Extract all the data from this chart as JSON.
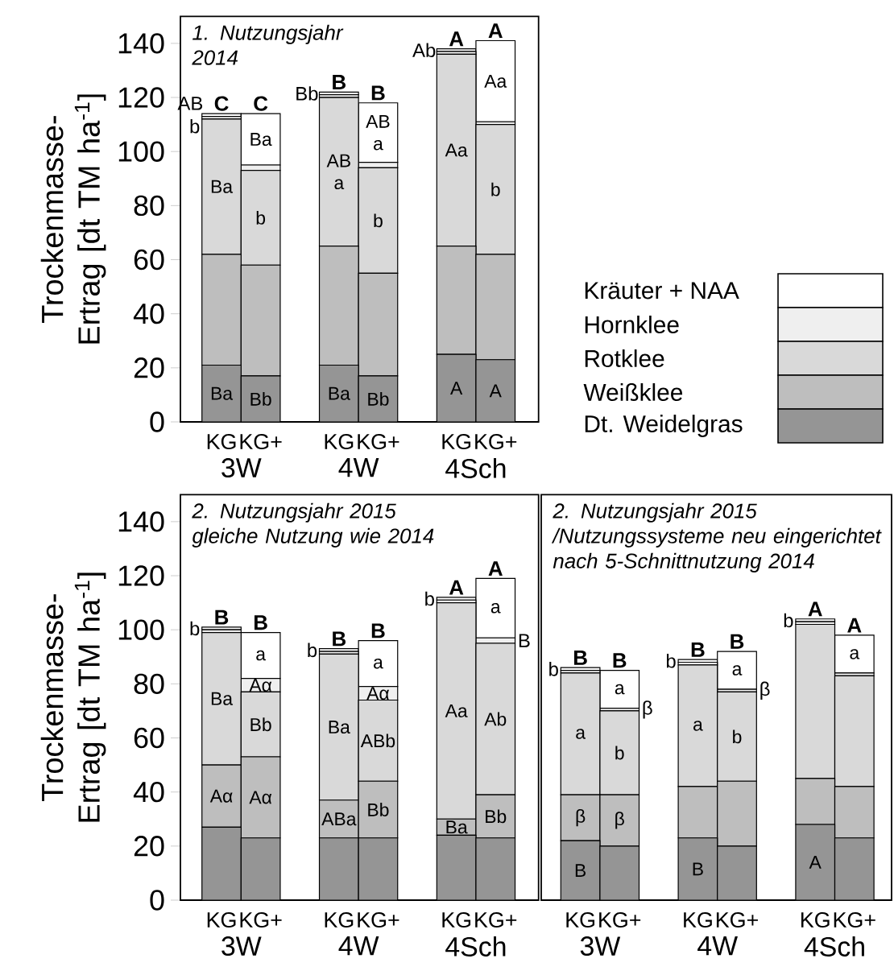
{
  "chart_data": [
    {
      "type": "bar",
      "stacked": true,
      "title": "1. Nutzungsjahr 2014",
      "ylabel": "Trockenmasse-Ertrag [dt TM ha$^{-1}$]",
      "legend": "right",
      "categories": [
        "KG",
        "KG+",
        "KG",
        "KG+",
        "KG",
        "KG+"
      ],
      "annotations": [
        "3W",
        "4W",
        "4Sch"
      ],
      "ylim": [
        0,
        150
      ],
      "yticks": [
        0,
        20,
        40,
        60,
        80,
        100,
        120,
        140
      ],
      "series": [
        {
          "name": "Dt. Weidelgras",
          "color": "#959595",
          "values": [
            21,
            17,
            21,
            17,
            25,
            23
          ],
          "value_labels": [
            "Ba",
            "Bb",
            "Ba",
            "Bb",
            "A",
            "A"
          ]
        },
        {
          "name": "Weißklee",
          "color": "#bebebe",
          "values": [
            41,
            41,
            44,
            38,
            40,
            39
          ]
        },
        {
          "name": "Rotklee",
          "color": "#d9d9d9",
          "values": [
            50,
            35,
            55,
            39,
            71,
            48
          ],
          "value_labels": [
            "Ba",
            "b",
            "AB a",
            "b",
            "Aa",
            "b"
          ]
        },
        {
          "name": "Hornklee",
          "color": "#efefef",
          "values": [
            1,
            2,
            1,
            2,
            1,
            1
          ]
        },
        {
          "name": "Kräuter + NAA",
          "color": "#ffffff",
          "values": [
            1,
            19,
            1,
            22,
            1,
            30
          ],
          "value_labels": [
            "AB b",
            "Ba",
            "Bb",
            "AB a",
            "Ab",
            "Aa"
          ]
        }
      ],
      "totals": [
        "C",
        "C",
        "B",
        "B",
        "A",
        "A"
      ]
    },
    {
      "type": "bar",
      "stacked": true,
      "title": "2. Nutzungsjahr 2015 gleiche Nutzung wie 2014",
      "ylabel": "Trockenmasse-Ertrag [dt TM ha$^{-1}$]",
      "categories": [
        "KG",
        "KG+",
        "KG",
        "KG+",
        "KG",
        "KG+"
      ],
      "annotations": [
        "3W",
        "4W",
        "4Sch"
      ],
      "ylim": [
        0,
        150
      ],
      "yticks": [
        0,
        20,
        40,
        60,
        80,
        100,
        120,
        140
      ],
      "series": [
        {
          "color": "#959595",
          "values": [
            27,
            23,
            23,
            23,
            24,
            23
          ]
        },
        {
          "color": "#bebebe",
          "values": [
            23,
            30,
            14,
            21,
            6,
            16
          ],
          "value_labels": [
            "Aα",
            "Aα",
            "ABa",
            "Bb",
            "Ba",
            "Bb"
          ]
        },
        {
          "color": "#d9d9d9",
          "values": [
            49,
            24,
            54,
            30,
            80,
            56
          ],
          "value_labels": [
            "Ba",
            "Bb",
            "Ba",
            "ABb",
            "Aa",
            "Ab"
          ]
        },
        {
          "color": "#efefef",
          "values": [
            1,
            5,
            1,
            5,
            1,
            2
          ],
          "value_labels": [
            null,
            "Aα",
            null,
            "Aα",
            null,
            "B"
          ]
        },
        {
          "color": "#ffffff",
          "values": [
            1,
            17,
            1,
            17,
            1,
            22
          ],
          "value_labels": [
            "b",
            "a",
            "b",
            "a",
            "b",
            "a"
          ]
        }
      ],
      "totals": [
        "B",
        "B",
        "B",
        "B",
        "A",
        "A"
      ]
    },
    {
      "type": "bar",
      "stacked": true,
      "title": "2. Nutzungsjahr 2015 /Nutzungssysteme neu eingerichtet nach 5-Schnittnutzung 2014",
      "tick_labels": "x",
      "categories": [
        "KG",
        "KG+",
        "KG",
        "KG+",
        "KG",
        "KG+"
      ],
      "annotations": [
        "3W",
        "4W",
        "4Sch"
      ],
      "ylim": [
        0,
        150
      ],
      "yticks": [
        0,
        20,
        40,
        60,
        80,
        100,
        120,
        140
      ],
      "series": [
        {
          "color": "#959595",
          "values": [
            22,
            20,
            23,
            20,
            28,
            23
          ],
          "value_labels": [
            "B",
            null,
            "B",
            null,
            "A",
            null
          ]
        },
        {
          "color": "#bebebe",
          "values": [
            17,
            19,
            19,
            24,
            17,
            19
          ],
          "value_labels": [
            "β",
            "β",
            null,
            null,
            null,
            null
          ]
        },
        {
          "color": "#d9d9d9",
          "values": [
            45,
            31,
            45,
            33,
            57,
            41
          ],
          "value_labels": [
            "a",
            "b",
            "a",
            "b",
            null,
            null
          ]
        },
        {
          "color": "#efefef",
          "values": [
            1,
            1,
            1,
            1,
            1,
            1
          ],
          "value_labels": [
            null,
            "β",
            null,
            "β",
            null,
            null
          ]
        },
        {
          "color": "#ffffff",
          "values": [
            1,
            14,
            1,
            14,
            1,
            14
          ],
          "value_labels": [
            "b",
            "a",
            "b",
            "a",
            "b",
            "a"
          ]
        }
      ],
      "totals": [
        "B",
        "B",
        "B",
        "B",
        "A",
        "A"
      ]
    }
  ]
}
